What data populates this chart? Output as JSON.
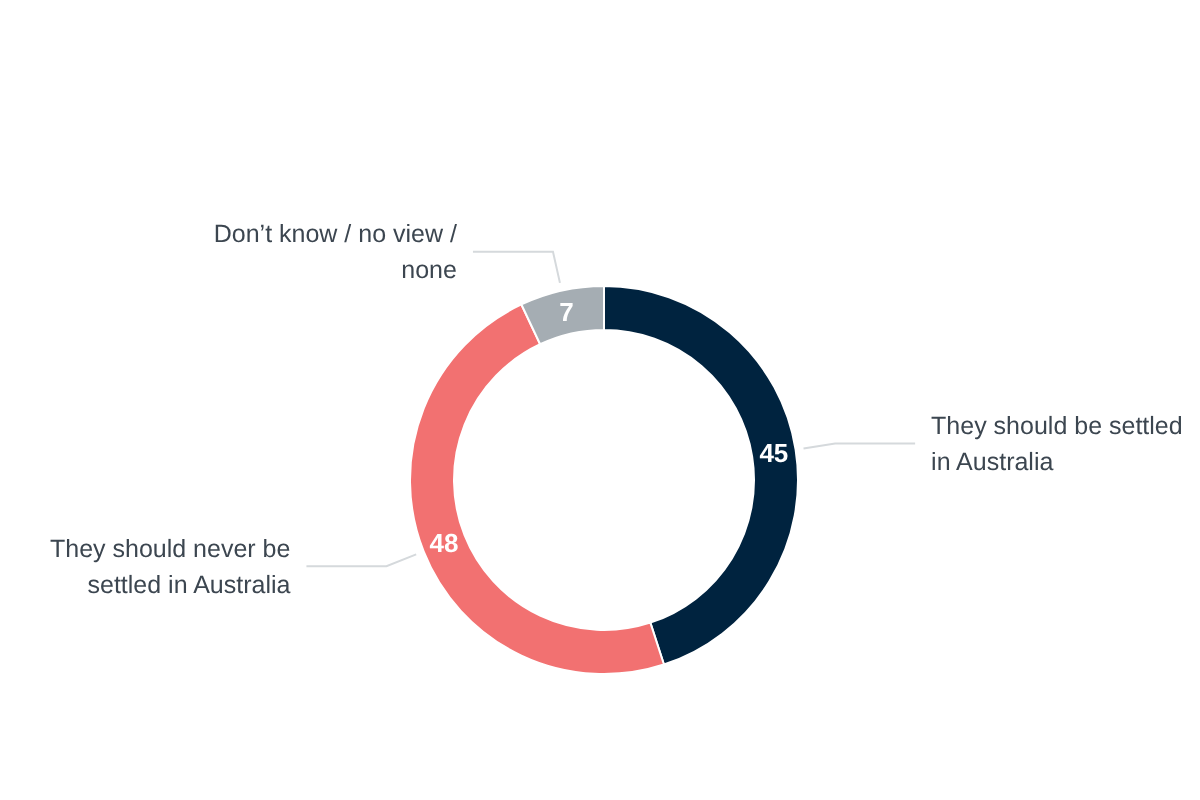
{
  "chart_data": {
    "type": "donut",
    "categories": [
      "They should be settled in Australia",
      "They should never be settled in Australia",
      "Don’t know / no view / none"
    ],
    "values": [
      45,
      48,
      7
    ],
    "colors": [
      "#00233f",
      "#f27171",
      "#a5adb3"
    ],
    "data_labels": true,
    "legend": false
  }
}
